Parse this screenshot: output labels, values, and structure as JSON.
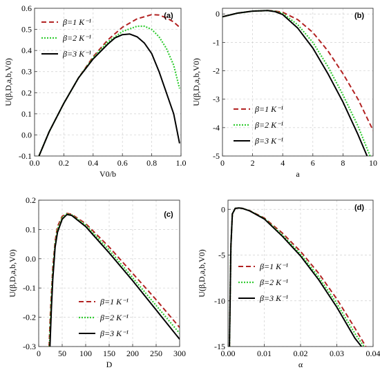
{
  "chart_data": [
    {
      "type": "line",
      "tag": "(a)",
      "xlabel": "V0/b",
      "ylabel": "U(β,D,a,b,V0)",
      "xlim": [
        0,
        1
      ],
      "ylim": [
        -0.1,
        0.6
      ],
      "xticks": [
        0.0,
        0.2,
        0.4,
        0.6,
        0.8,
        1.0
      ],
      "xtick_labels": [
        "0.0",
        "0.2",
        "0.4",
        "0.6",
        "0.8",
        "1.0"
      ],
      "yticks": [
        -0.1,
        0.0,
        0.1,
        0.2,
        0.3,
        0.4,
        0.5,
        0.6
      ],
      "ytick_labels": [
        "-0.1",
        "0.0",
        "0.1",
        "0.2",
        "0.3",
        "0.4",
        "0.5",
        "0.6"
      ],
      "grid": true,
      "legend_position": "top-left",
      "series": [
        {
          "name": "β=1 K⁻¹",
          "style": "dashed",
          "color": "#b22222",
          "x": [
            0.03,
            0.1,
            0.2,
            0.3,
            0.4,
            0.5,
            0.6,
            0.7,
            0.8,
            0.85,
            0.9,
            0.95,
            0.99
          ],
          "y": [
            -0.1,
            0.015,
            0.15,
            0.27,
            0.37,
            0.45,
            0.51,
            0.55,
            0.57,
            0.568,
            0.555,
            0.535,
            0.51
          ]
        },
        {
          "name": "β=2 K⁻¹",
          "style": "dotted",
          "color": "#33cc33",
          "x": [
            0.03,
            0.1,
            0.2,
            0.3,
            0.4,
            0.5,
            0.6,
            0.7,
            0.75,
            0.8,
            0.85,
            0.9,
            0.95,
            0.99
          ],
          "y": [
            -0.1,
            0.015,
            0.15,
            0.27,
            0.365,
            0.44,
            0.49,
            0.515,
            0.515,
            0.5,
            0.465,
            0.41,
            0.33,
            0.22
          ]
        },
        {
          "name": "β=3 K⁻¹",
          "style": "solid",
          "color": "#000000",
          "x": [
            0.03,
            0.1,
            0.2,
            0.3,
            0.4,
            0.5,
            0.55,
            0.6,
            0.65,
            0.7,
            0.75,
            0.8,
            0.85,
            0.9,
            0.95,
            0.99
          ],
          "y": [
            -0.1,
            0.015,
            0.15,
            0.27,
            0.36,
            0.43,
            0.46,
            0.475,
            0.478,
            0.465,
            0.435,
            0.385,
            0.3,
            0.2,
            0.1,
            -0.04
          ]
        }
      ]
    },
    {
      "type": "line",
      "tag": "(b)",
      "xlabel": "a",
      "ylabel": "U(β,D,a,b,V0)",
      "xlim": [
        0,
        10
      ],
      "ylim": [
        -5,
        0.2
      ],
      "xticks": [
        0,
        2,
        4,
        6,
        8,
        10
      ],
      "xtick_labels": [
        "0",
        "2",
        "4",
        "6",
        "8",
        "10"
      ],
      "yticks": [
        -5,
        -4,
        -3,
        -2,
        -1,
        0
      ],
      "ytick_labels": [
        "-5",
        "-4",
        "-3",
        "-2",
        "-1",
        "0"
      ],
      "grid": true,
      "legend_position": "bottom-left",
      "series": [
        {
          "name": "β=1 K⁻¹",
          "style": "dashed",
          "color": "#b22222",
          "x": [
            0,
            1,
            2,
            3,
            3.5,
            4,
            5,
            6,
            7,
            8,
            9,
            10
          ],
          "y": [
            -0.1,
            0.03,
            0.1,
            0.12,
            0.1,
            0.06,
            -0.2,
            -0.65,
            -1.3,
            -2.1,
            -3.0,
            -4.1
          ]
        },
        {
          "name": "β=2 K⁻¹",
          "style": "dotted",
          "color": "#33cc33",
          "x": [
            0,
            1,
            2,
            3,
            3.5,
            4,
            5,
            6,
            7,
            8,
            9,
            9.8
          ],
          "y": [
            -0.1,
            0.03,
            0.1,
            0.12,
            0.09,
            0.02,
            -0.38,
            -1.0,
            -1.85,
            -2.85,
            -3.95,
            -5.0
          ]
        },
        {
          "name": "β=3 K⁻¹",
          "style": "solid",
          "color": "#000000",
          "x": [
            0,
            1,
            2,
            3,
            3.5,
            4,
            5,
            6,
            7,
            8,
            9,
            9.6
          ],
          "y": [
            -0.1,
            0.03,
            0.1,
            0.12,
            0.08,
            -0.02,
            -0.5,
            -1.2,
            -2.1,
            -3.1,
            -4.25,
            -5.0
          ]
        }
      ]
    },
    {
      "type": "line",
      "tag": "(c)",
      "xlabel": "D",
      "ylabel": "U(β,D,a,b,V0)",
      "xlim": [
        0,
        300
      ],
      "ylim": [
        -0.3,
        0.2
      ],
      "xticks": [
        0,
        50,
        100,
        150,
        200,
        250,
        300
      ],
      "xtick_labels": [
        "0",
        "50",
        "100",
        "150",
        "200",
        "250",
        "300"
      ],
      "yticks": [
        -0.3,
        -0.2,
        -0.1,
        0.0,
        0.1,
        0.2
      ],
      "ytick_labels": [
        "-0.3",
        "-0.2",
        "-0.1",
        "0.0",
        "0.1",
        "0.2"
      ],
      "grid": true,
      "legend_position": "bottom-left",
      "series": [
        {
          "name": "β=1 K⁻¹",
          "style": "dashed",
          "color": "#b22222",
          "x": [
            22,
            25,
            30,
            35,
            40,
            50,
            60,
            70,
            100,
            150,
            200,
            250,
            300
          ],
          "y": [
            -0.3,
            -0.18,
            -0.03,
            0.06,
            0.11,
            0.145,
            0.155,
            0.152,
            0.12,
            0.04,
            -0.05,
            -0.14,
            -0.235
          ]
        },
        {
          "name": "β=2 K⁻¹",
          "style": "dotted",
          "color": "#33cc33",
          "x": [
            23,
            26,
            30,
            35,
            40,
            50,
            60,
            70,
            100,
            150,
            200,
            250,
            300
          ],
          "y": [
            -0.3,
            -0.17,
            -0.05,
            0.05,
            0.1,
            0.14,
            0.153,
            0.15,
            0.115,
            0.03,
            -0.065,
            -0.16,
            -0.255
          ]
        },
        {
          "name": "β=3 K⁻¹",
          "style": "solid",
          "color": "#000000",
          "x": [
            24,
            27,
            30,
            35,
            40,
            50,
            60,
            70,
            100,
            150,
            200,
            250,
            300
          ],
          "y": [
            -0.3,
            -0.17,
            -0.07,
            0.04,
            0.09,
            0.135,
            0.151,
            0.148,
            0.11,
            0.02,
            -0.075,
            -0.175,
            -0.275
          ]
        }
      ]
    },
    {
      "type": "line",
      "tag": "(d)",
      "xlabel": "α",
      "ylabel": "U(β,D,a,b,V0)",
      "xlim": [
        0,
        0.04
      ],
      "ylim": [
        -15,
        1
      ],
      "xticks": [
        0.0,
        0.01,
        0.02,
        0.03,
        0.04
      ],
      "xtick_labels": [
        "0.00",
        "0.01",
        "0.02",
        "0.03",
        "0.04"
      ],
      "yticks": [
        -15,
        -10,
        -5,
        0
      ],
      "ytick_labels": [
        "-15",
        "-10",
        "-5",
        "0"
      ],
      "grid": true,
      "legend_position": "bottom-left",
      "series": [
        {
          "name": "β=1 K⁻¹",
          "style": "dashed",
          "color": "#b22222",
          "x": [
            0.0004,
            0.0008,
            0.0012,
            0.002,
            0.003,
            0.004,
            0.006,
            0.01,
            0.015,
            0.02,
            0.025,
            0.03,
            0.035,
            0.038
          ],
          "y": [
            -15,
            -4,
            -0.5,
            0.1,
            0.15,
            0.1,
            -0.15,
            -0.95,
            -2.6,
            -4.6,
            -7.0,
            -9.8,
            -13.0,
            -15.0
          ]
        },
        {
          "name": "β=2 K⁻¹",
          "style": "dotted",
          "color": "#33cc33",
          "x": [
            0.0004,
            0.0008,
            0.0012,
            0.002,
            0.003,
            0.004,
            0.006,
            0.01,
            0.015,
            0.02,
            0.025,
            0.03,
            0.035,
            0.0375
          ],
          "y": [
            -15,
            -4,
            -0.5,
            0.1,
            0.15,
            0.1,
            -0.16,
            -1.0,
            -2.8,
            -4.9,
            -7.4,
            -10.3,
            -13.6,
            -15.0
          ]
        },
        {
          "name": "β=3 K⁻¹",
          "style": "solid",
          "color": "#000000",
          "x": [
            0.0004,
            0.0008,
            0.0012,
            0.002,
            0.003,
            0.004,
            0.006,
            0.01,
            0.015,
            0.02,
            0.025,
            0.03,
            0.035,
            0.0368
          ],
          "y": [
            -15,
            -4,
            -0.5,
            0.1,
            0.15,
            0.1,
            -0.18,
            -1.05,
            -2.95,
            -5.1,
            -7.7,
            -10.7,
            -14.1,
            -15.0
          ]
        }
      ]
    }
  ]
}
